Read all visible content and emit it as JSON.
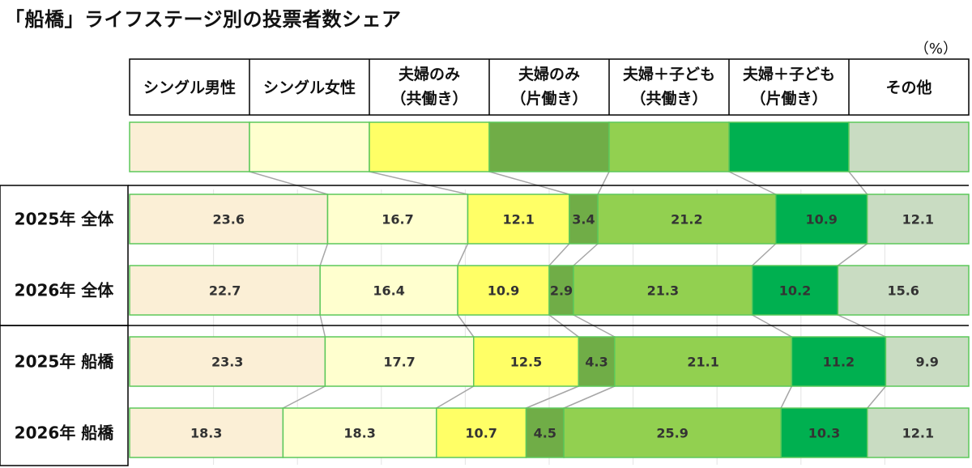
{
  "title": "「船橋」ライフステージ別の投票者数シェア",
  "unit": "（%）",
  "colors": {
    "border": "#5cc85a",
    "connector": "#a6a6a6",
    "segments": [
      "#fbefd6",
      "#ffffcf",
      "#ffff66",
      "#70ad47",
      "#92d050",
      "#00b050",
      "#c9dcc2"
    ]
  },
  "chart_data": {
    "type": "bar",
    "stacked": true,
    "orientation": "horizontal",
    "normalized": true,
    "categories": [
      [
        "シングル男性"
      ],
      [
        "シングル女性"
      ],
      [
        "夫婦のみ",
        "（共働き）"
      ],
      [
        "夫婦のみ",
        "（片働き）"
      ],
      [
        "夫婦＋子ども",
        "（共働き）"
      ],
      [
        "夫婦＋子ども",
        "（片働き）"
      ],
      [
        "その他"
      ]
    ],
    "rows": [
      {
        "label": "2025年 全体",
        "values": [
          23.6,
          16.7,
          12.1,
          3.4,
          21.2,
          10.9,
          12.1
        ]
      },
      {
        "label": "2026年 全体",
        "values": [
          22.7,
          16.4,
          10.9,
          2.9,
          21.3,
          10.2,
          15.6
        ]
      },
      {
        "label": "2025年 船橋",
        "values": [
          23.3,
          17.7,
          12.5,
          4.3,
          21.1,
          11.2,
          9.9
        ]
      },
      {
        "label": "2026年 船橋",
        "values": [
          18.3,
          18.3,
          10.7,
          4.5,
          25.9,
          10.3,
          12.1
        ]
      }
    ],
    "grid": true,
    "legend": "top"
  }
}
